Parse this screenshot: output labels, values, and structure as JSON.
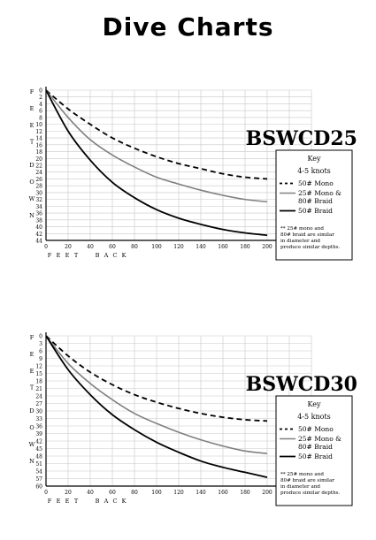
{
  "page_title": "Dive Charts",
  "colors": {
    "mono50": "#000000",
    "mono25_braid80": "#808080",
    "braid50": "#000000",
    "grid": "#c8c8c8"
  },
  "chart_data": [
    {
      "type": "line",
      "title": "BSWCD25",
      "ylabel": "FEET DOWN",
      "xlabel": "FEET BACK",
      "xlim": [
        0,
        240
      ],
      "ylim": [
        0,
        44
      ],
      "x_ticks": [
        0,
        20,
        40,
        60,
        80,
        100,
        120,
        140,
        160,
        180,
        200,
        220,
        240
      ],
      "y_ticks": [
        0,
        2,
        4,
        6,
        8,
        10,
        12,
        14,
        16,
        18,
        20,
        22,
        24,
        26,
        28,
        30,
        32,
        34,
        36,
        38,
        40,
        42,
        44
      ],
      "grid": true,
      "legend": {
        "title": "Key",
        "subtitle": "4-5 knots",
        "entries": [
          {
            "label_lines": [
              "50# Mono"
            ],
            "style": "dashed",
            "color": "#000000"
          },
          {
            "label_lines": [
              "25# Mono &",
              "80# Braid"
            ],
            "style": "solid",
            "color": "#808080"
          },
          {
            "label_lines": [
              "50# Braid"
            ],
            "style": "solid",
            "color": "#000000"
          }
        ],
        "note_lines": [
          "** 25# mono and",
          "80# braid are similar",
          "in diameter and",
          "produce similar depths."
        ]
      },
      "x": [
        0,
        20,
        40,
        60,
        80,
        100,
        120,
        140,
        160,
        180,
        200
      ],
      "series": [
        {
          "name": "50# Mono",
          "values": [
            0,
            5.5,
            10,
            14,
            17,
            19.5,
            21.5,
            23,
            24.5,
            25.5,
            26
          ]
        },
        {
          "name": "25# Mono & 80# Braid",
          "values": [
            0,
            8,
            14.5,
            19,
            22.5,
            25.5,
            27.5,
            29.3,
            30.8,
            32,
            32.7
          ]
        },
        {
          "name": "50# Braid",
          "values": [
            0,
            12,
            20.5,
            27,
            31.5,
            35,
            37.5,
            39.3,
            40.8,
            41.8,
            42.5
          ]
        }
      ]
    },
    {
      "type": "line",
      "title": "BSWCD30",
      "ylabel": "FEET DOWN",
      "xlabel": "FEET BACK",
      "xlim": [
        0,
        240
      ],
      "ylim": [
        0,
        60
      ],
      "x_ticks": [
        0,
        20,
        40,
        60,
        80,
        100,
        120,
        140,
        160,
        180,
        200,
        220,
        240
      ],
      "y_ticks": [
        0,
        3,
        6,
        9,
        12,
        15,
        18,
        21,
        24,
        27,
        30,
        33,
        36,
        39,
        42,
        45,
        48,
        51,
        54,
        57,
        60
      ],
      "grid": true,
      "legend": {
        "title": "Key",
        "subtitle": "4-5 knots",
        "entries": [
          {
            "label_lines": [
              "50# Mono"
            ],
            "style": "dashed",
            "color": "#000000"
          },
          {
            "label_lines": [
              "25# Mono &",
              "80# Braid"
            ],
            "style": "solid",
            "color": "#808080"
          },
          {
            "label_lines": [
              "50# Braid"
            ],
            "style": "solid",
            "color": "#000000"
          }
        ],
        "note_lines": [
          "** 25# mono and",
          "80# braid are similar",
          "in diameter and",
          "produce similar depths."
        ]
      },
      "x": [
        0,
        20,
        40,
        60,
        80,
        100,
        120,
        140,
        160,
        180,
        200
      ],
      "series": [
        {
          "name": "50# Mono",
          "values": [
            0,
            8,
            14.5,
            19.5,
            23.5,
            26.5,
            29,
            31,
            32.5,
            33.5,
            34
          ]
        },
        {
          "name": "25# Mono & 80# Braid",
          "values": [
            0,
            11,
            19,
            25.5,
            31,
            35,
            38.5,
            41.5,
            44,
            46,
            47
          ]
        },
        {
          "name": "50# Braid",
          "values": [
            0,
            13.5,
            23.5,
            31.5,
            37.5,
            42.5,
            46.5,
            50,
            52.5,
            54.5,
            56.5
          ]
        }
      ]
    }
  ]
}
